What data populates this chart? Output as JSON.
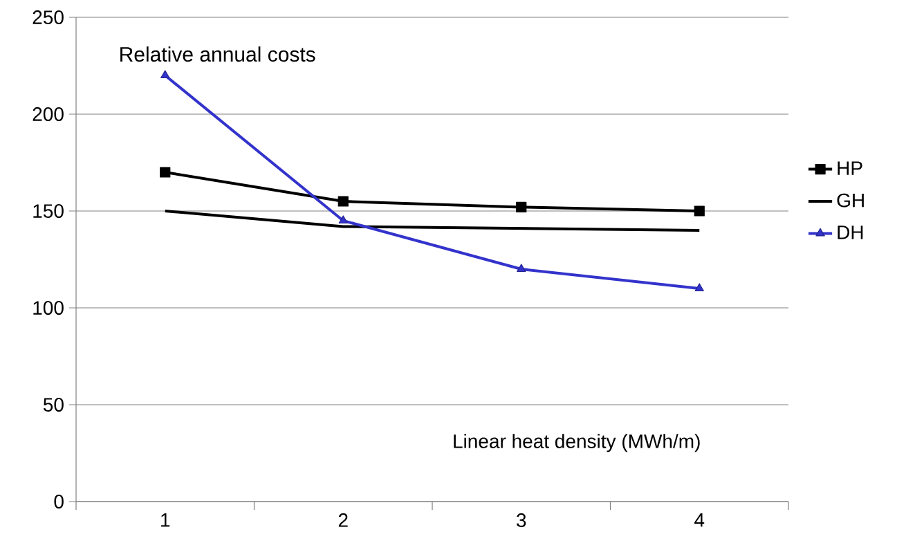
{
  "chart_data": {
    "type": "line",
    "xlabel": "Linear heat density (MWh/m)",
    "ylabel": "Relative annual costs",
    "categories": [
      "1",
      "2",
      "3",
      "4"
    ],
    "series": [
      {
        "name": "HP",
        "color": "#000000",
        "marker": "square",
        "values": [
          170,
          155,
          152,
          150
        ]
      },
      {
        "name": "GH",
        "color": "#000000",
        "marker": "none",
        "values": [
          150,
          142,
          141,
          140
        ]
      },
      {
        "name": "DH",
        "color": "#3333cc",
        "marker": "triangle",
        "values": [
          220,
          145,
          120,
          110
        ]
      }
    ],
    "ylim": [
      0,
      250
    ],
    "yticks": [
      0,
      50,
      100,
      150,
      200,
      250
    ],
    "grid": "y",
    "legend": "right"
  }
}
